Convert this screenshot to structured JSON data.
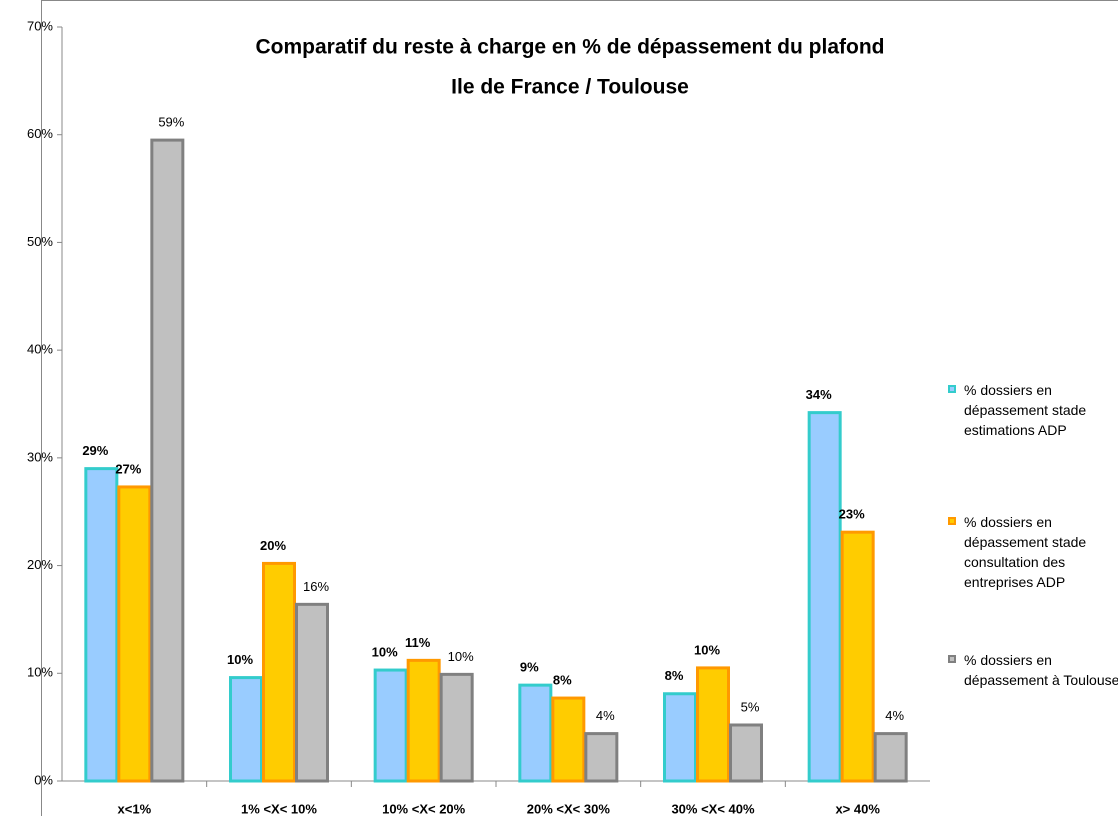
{
  "chart_data": {
    "type": "bar",
    "title": "Comparatif du reste à charge  en % de dépassement du plafond",
    "subtitle": "Ile de France  / Toulouse",
    "categories": [
      "x<1%",
      "1% <X< 10%",
      "10% <X< 20%",
      "20% <X< 30%",
      "30% <X< 40%",
      "x> 40%"
    ],
    "series": [
      {
        "name": "% dossiers en dépassement stade estimations ADP",
        "color": "#99ccff",
        "edge_color": "#33cccc",
        "values": [
          29,
          9.6,
          10.3,
          8.9,
          8.1,
          34.2
        ],
        "value_labels": [
          "29%",
          "10%",
          "10%",
          "9%",
          "8%",
          "34%"
        ]
      },
      {
        "name": "% dossiers en dépassement stade consultation des entreprises ADP",
        "color": "#ffcc00",
        "edge_color": "#ff9900",
        "values": [
          27.3,
          20.2,
          11.2,
          7.7,
          10.5,
          23.1
        ],
        "value_labels": [
          "27%",
          "20%",
          "11%",
          "8%",
          "10%",
          "23%"
        ]
      },
      {
        "name": "% dossiers en dépassement à Toulouse",
        "color": "#c0c0c0",
        "edge_color": "#808080",
        "values": [
          59.5,
          16.4,
          9.9,
          4.4,
          5.2,
          4.4
        ],
        "value_labels": [
          "59%",
          "16%",
          "10%",
          "4%",
          "5%",
          "4%"
        ]
      }
    ],
    "ylim": [
      0,
      70
    ],
    "yticks": [
      {
        "value": 0,
        "label": "0%"
      },
      {
        "value": 10,
        "label": "10%"
      },
      {
        "value": 20,
        "label": "20%"
      },
      {
        "value": 30,
        "label": "30%"
      },
      {
        "value": 40,
        "label": "40%"
      },
      {
        "value": 50,
        "label": "50%"
      },
      {
        "value": 60,
        "label": "60%"
      },
      {
        "value": 70,
        "label": "70%"
      }
    ],
    "grid": false,
    "legend": "right"
  }
}
